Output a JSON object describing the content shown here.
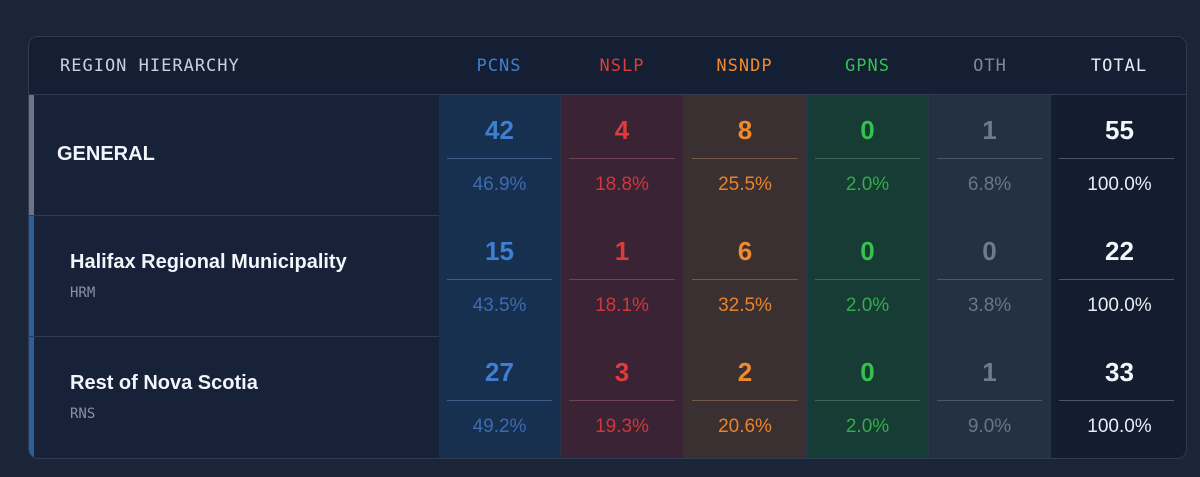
{
  "colors": {
    "pcns": "#3f7fd2",
    "nslp": "#e03a3a",
    "nsndp": "#f08a2c",
    "gpns": "#35c04f",
    "oth": "#7d8899",
    "total": "#f2f5fa"
  },
  "header": {
    "region": "REGION HIERARCHY",
    "pcns": "PCNS",
    "nslp": "NSLP",
    "nsndp": "NSNDP",
    "gpns": "GPNS",
    "oth": "OTH",
    "total": "TOTAL"
  },
  "rows": [
    {
      "name": "GENERAL",
      "code": "",
      "pcns": {
        "count": "42",
        "pct": "46.9%"
      },
      "nslp": {
        "count": "4",
        "pct": "18.8%"
      },
      "nsndp": {
        "count": "8",
        "pct": "25.5%"
      },
      "gpns": {
        "count": "0",
        "pct": "2.0%"
      },
      "oth": {
        "count": "1",
        "pct": "6.8%"
      },
      "total": {
        "count": "55",
        "pct": "100.0%"
      }
    },
    {
      "name": "Halifax Regional Municipality",
      "code": "HRM",
      "pcns": {
        "count": "15",
        "pct": "43.5%"
      },
      "nslp": {
        "count": "1",
        "pct": "18.1%"
      },
      "nsndp": {
        "count": "6",
        "pct": "32.5%"
      },
      "gpns": {
        "count": "0",
        "pct": "2.0%"
      },
      "oth": {
        "count": "0",
        "pct": "3.8%"
      },
      "total": {
        "count": "22",
        "pct": "100.0%"
      }
    },
    {
      "name": "Rest of Nova Scotia",
      "code": "RNS",
      "pcns": {
        "count": "27",
        "pct": "49.2%"
      },
      "nslp": {
        "count": "3",
        "pct": "19.3%"
      },
      "nsndp": {
        "count": "2",
        "pct": "20.6%"
      },
      "gpns": {
        "count": "0",
        "pct": "2.0%"
      },
      "oth": {
        "count": "1",
        "pct": "9.0%"
      },
      "total": {
        "count": "33",
        "pct": "100.0%"
      }
    }
  ]
}
